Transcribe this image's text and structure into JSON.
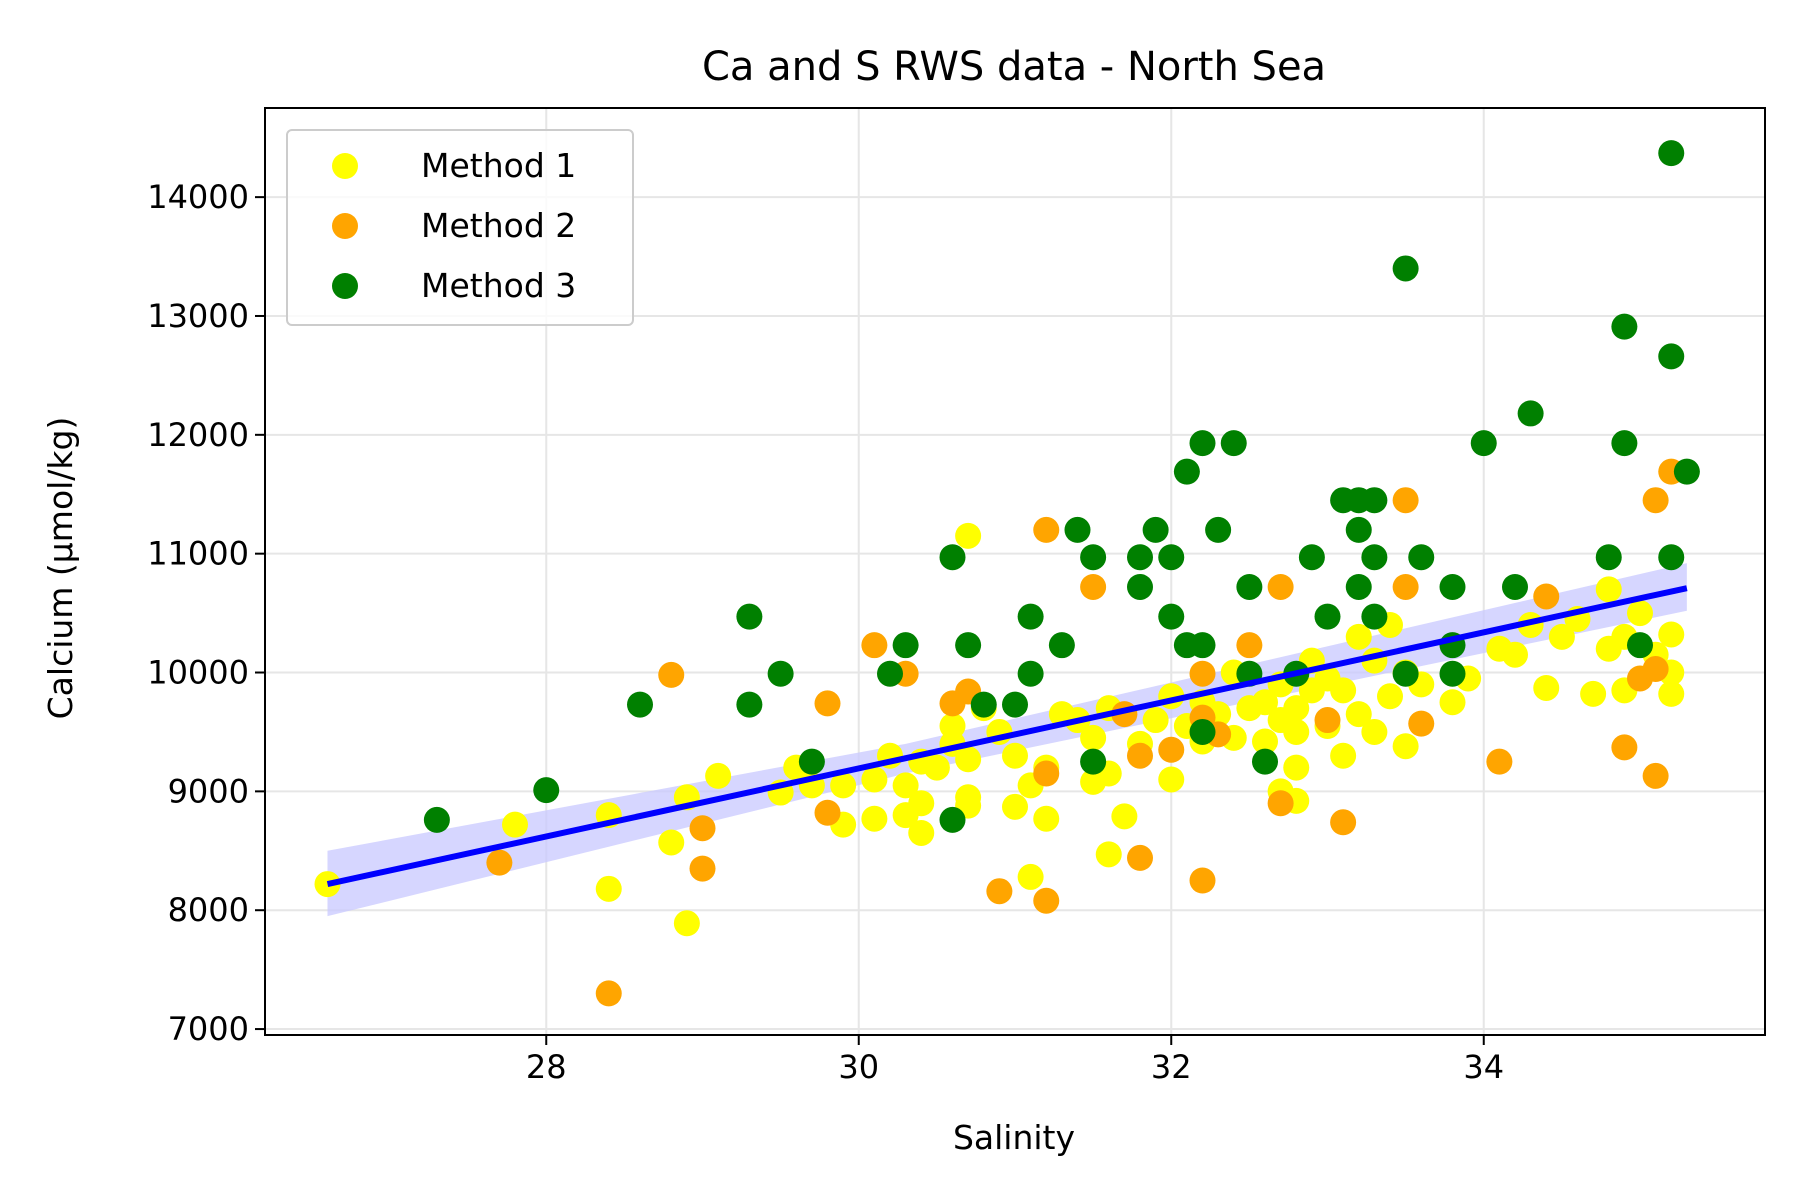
{
  "chart_data": {
    "type": "scatter",
    "title": "Ca and S RWS data - North Sea",
    "xlabel": "Salinity",
    "ylabel": "Calcium (µmol/kg)",
    "xlim": [
      26.2,
      35.8
    ],
    "ylim": [
      6950,
      14750
    ],
    "x_ticks": [
      28,
      30,
      32,
      34
    ],
    "y_ticks": [
      7000,
      8000,
      9000,
      10000,
      11000,
      12000,
      13000,
      14000
    ],
    "grid": true,
    "legend_position": "upper-left",
    "series": [
      {
        "name": "Method 1",
        "color": "#ffff00",
        "points": [
          [
            26.6,
            8220
          ],
          [
            27.8,
            8720
          ],
          [
            28.4,
            8180
          ],
          [
            28.4,
            8800
          ],
          [
            28.8,
            8570
          ],
          [
            28.9,
            8950
          ],
          [
            28.9,
            7890
          ],
          [
            29.1,
            9130
          ],
          [
            29.5,
            8990
          ],
          [
            29.6,
            9200
          ],
          [
            29.7,
            9050
          ],
          [
            29.9,
            8720
          ],
          [
            29.9,
            9050
          ],
          [
            30.1,
            8770
          ],
          [
            30.1,
            9100
          ],
          [
            30.2,
            9300
          ],
          [
            30.3,
            8800
          ],
          [
            30.3,
            9050
          ],
          [
            30.4,
            8650
          ],
          [
            30.4,
            9250
          ],
          [
            30.4,
            8900
          ],
          [
            30.5,
            9200
          ],
          [
            30.6,
            9550
          ],
          [
            30.6,
            9400
          ],
          [
            30.7,
            9270
          ],
          [
            30.7,
            8950
          ],
          [
            30.7,
            8880
          ],
          [
            30.7,
            11150
          ],
          [
            30.8,
            9700
          ],
          [
            30.9,
            9500
          ],
          [
            31.0,
            9300
          ],
          [
            31.0,
            8870
          ],
          [
            31.1,
            8280
          ],
          [
            31.1,
            9050
          ],
          [
            31.2,
            9200
          ],
          [
            31.2,
            8770
          ],
          [
            31.3,
            9650
          ],
          [
            31.4,
            9600
          ],
          [
            31.5,
            9080
          ],
          [
            31.5,
            9450
          ],
          [
            31.6,
            9150
          ],
          [
            31.6,
            9700
          ],
          [
            31.6,
            8470
          ],
          [
            31.7,
            8790
          ],
          [
            31.8,
            9400
          ],
          [
            31.9,
            9600
          ],
          [
            32.0,
            9800
          ],
          [
            32.0,
            9100
          ],
          [
            32.1,
            9550
          ],
          [
            32.2,
            9750
          ],
          [
            32.2,
            9420
          ],
          [
            32.3,
            9650
          ],
          [
            32.4,
            9450
          ],
          [
            32.4,
            10000
          ],
          [
            32.5,
            9700
          ],
          [
            32.6,
            9750
          ],
          [
            32.6,
            9420
          ],
          [
            32.7,
            9600
          ],
          [
            32.7,
            9900
          ],
          [
            32.7,
            9000
          ],
          [
            32.8,
            9500
          ],
          [
            32.8,
            9200
          ],
          [
            32.8,
            8920
          ],
          [
            32.8,
            9700
          ],
          [
            32.9,
            10100
          ],
          [
            32.9,
            9850
          ],
          [
            33.0,
            9550
          ],
          [
            33.0,
            9950
          ],
          [
            33.1,
            9300
          ],
          [
            33.1,
            9850
          ],
          [
            33.2,
            9650
          ],
          [
            33.2,
            10300
          ],
          [
            33.3,
            10100
          ],
          [
            33.3,
            9500
          ],
          [
            33.4,
            9800
          ],
          [
            33.4,
            10400
          ],
          [
            33.5,
            10000
          ],
          [
            33.5,
            9380
          ],
          [
            33.6,
            9900
          ],
          [
            33.8,
            9750
          ],
          [
            33.9,
            9950
          ],
          [
            34.1,
            10200
          ],
          [
            34.2,
            10150
          ],
          [
            34.3,
            10400
          ],
          [
            34.4,
            9870
          ],
          [
            34.5,
            10300
          ],
          [
            34.6,
            10450
          ],
          [
            34.7,
            9820
          ],
          [
            34.8,
            10700
          ],
          [
            34.8,
            10200
          ],
          [
            34.9,
            9850
          ],
          [
            34.9,
            10300
          ],
          [
            35.0,
            10500
          ],
          [
            35.1,
            10150
          ],
          [
            35.2,
            10320
          ],
          [
            35.2,
            9820
          ],
          [
            35.2,
            10000
          ]
        ]
      },
      {
        "name": "Method 2",
        "color": "#ffa500",
        "points": [
          [
            27.7,
            8400
          ],
          [
            28.4,
            7300
          ],
          [
            28.8,
            9980
          ],
          [
            29.0,
            8690
          ],
          [
            29.0,
            8350
          ],
          [
            29.8,
            9740
          ],
          [
            29.8,
            8820
          ],
          [
            30.1,
            10230
          ],
          [
            30.3,
            9990
          ],
          [
            30.6,
            9740
          ],
          [
            30.7,
            9840
          ],
          [
            30.9,
            8160
          ],
          [
            31.2,
            11200
          ],
          [
            31.2,
            9150
          ],
          [
            31.2,
            8080
          ],
          [
            31.5,
            10720
          ],
          [
            31.7,
            9650
          ],
          [
            31.8,
            9300
          ],
          [
            31.8,
            8440
          ],
          [
            32.0,
            9350
          ],
          [
            32.2,
            9990
          ],
          [
            32.2,
            9620
          ],
          [
            32.2,
            8250
          ],
          [
            32.3,
            9480
          ],
          [
            32.5,
            10230
          ],
          [
            32.7,
            10720
          ],
          [
            32.7,
            8900
          ],
          [
            33.0,
            9600
          ],
          [
            33.1,
            8740
          ],
          [
            33.5,
            11450
          ],
          [
            33.5,
            10720
          ],
          [
            33.6,
            9570
          ],
          [
            34.1,
            9250
          ],
          [
            34.4,
            10640
          ],
          [
            34.9,
            9370
          ],
          [
            35.0,
            9950
          ],
          [
            35.1,
            10030
          ],
          [
            35.1,
            11450
          ],
          [
            35.2,
            11690
          ],
          [
            35.1,
            9130
          ]
        ]
      },
      {
        "name": "Method 3",
        "color": "#008000",
        "points": [
          [
            27.3,
            8760
          ],
          [
            28.0,
            9010
          ],
          [
            28.6,
            9730
          ],
          [
            29.3,
            10470
          ],
          [
            29.3,
            9730
          ],
          [
            29.5,
            9990
          ],
          [
            29.7,
            9250
          ],
          [
            30.2,
            9990
          ],
          [
            30.3,
            10230
          ],
          [
            30.6,
            10970
          ],
          [
            30.6,
            8760
          ],
          [
            30.7,
            10230
          ],
          [
            30.8,
            9730
          ],
          [
            31.0,
            9730
          ],
          [
            31.1,
            10470
          ],
          [
            31.1,
            9990
          ],
          [
            31.3,
            10230
          ],
          [
            31.4,
            11200
          ],
          [
            31.5,
            10970
          ],
          [
            31.5,
            9250
          ],
          [
            31.8,
            10970
          ],
          [
            31.8,
            10720
          ],
          [
            31.9,
            11200
          ],
          [
            32.0,
            10970
          ],
          [
            32.0,
            10470
          ],
          [
            32.1,
            11690
          ],
          [
            32.1,
            10230
          ],
          [
            32.2,
            11930
          ],
          [
            32.2,
            10230
          ],
          [
            32.2,
            9500
          ],
          [
            32.3,
            11200
          ],
          [
            32.4,
            11930
          ],
          [
            32.5,
            10720
          ],
          [
            32.5,
            9990
          ],
          [
            32.6,
            9250
          ],
          [
            32.8,
            9990
          ],
          [
            32.9,
            10970
          ],
          [
            33.0,
            10470
          ],
          [
            33.1,
            11450
          ],
          [
            33.2,
            11450
          ],
          [
            33.2,
            11200
          ],
          [
            33.2,
            10720
          ],
          [
            33.3,
            11450
          ],
          [
            33.3,
            10970
          ],
          [
            33.3,
            10470
          ],
          [
            33.5,
            13400
          ],
          [
            33.5,
            9990
          ],
          [
            33.6,
            10970
          ],
          [
            33.8,
            10720
          ],
          [
            33.8,
            10230
          ],
          [
            33.8,
            9990
          ],
          [
            34.0,
            11930
          ],
          [
            34.2,
            10720
          ],
          [
            34.3,
            12180
          ],
          [
            34.8,
            10970
          ],
          [
            34.9,
            12910
          ],
          [
            34.9,
            11930
          ],
          [
            35.0,
            10230
          ],
          [
            35.2,
            14370
          ],
          [
            35.2,
            12660
          ],
          [
            35.2,
            10970
          ],
          [
            35.3,
            11690
          ]
        ]
      }
    ],
    "regression": {
      "color": "#0000ff",
      "band_color": "#c8c8ff",
      "line": [
        [
          26.6,
          8220
        ],
        [
          35.3,
          10710
        ]
      ],
      "band_upper": [
        [
          26.6,
          8500
        ],
        [
          30.3,
          9400
        ],
        [
          35.3,
          10920
        ]
      ],
      "band_lower": [
        [
          26.6,
          7950
        ],
        [
          30.3,
          9150
        ],
        [
          35.3,
          10520
        ]
      ]
    }
  }
}
